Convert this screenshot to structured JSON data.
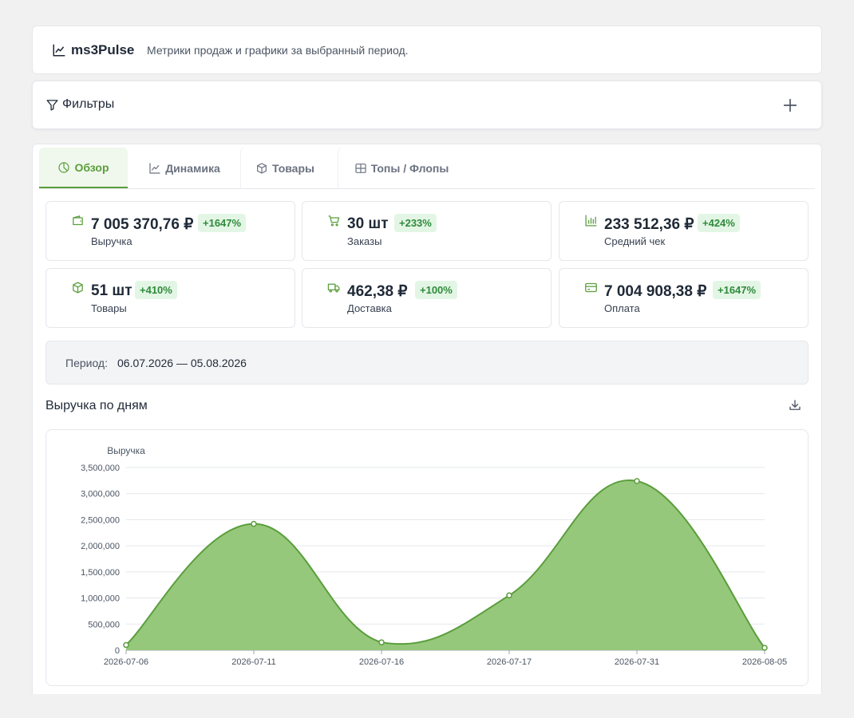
{
  "header": {
    "app_name": "ms3Pulse",
    "subtitle": "Метрики продаж и графики за выбранный период."
  },
  "filters": {
    "title": "Фильтры"
  },
  "tabs": [
    {
      "label": "Обзор",
      "icon": "pie-chart-icon",
      "active": true
    },
    {
      "label": "Динамика",
      "icon": "line-chart-icon",
      "active": false
    },
    {
      "label": "Товары",
      "icon": "box-icon",
      "active": false
    },
    {
      "label": "Топы / Флопы",
      "icon": "grid-icon",
      "active": false
    }
  ],
  "metrics": [
    {
      "value": "7 005 370,76 ₽",
      "badge": "+1647%",
      "label": "Выручка",
      "icon": "wallet-icon"
    },
    {
      "value": "30 шт",
      "badge": "+233%",
      "label": "Заказы",
      "icon": "cart-icon"
    },
    {
      "value": "233 512,36 ₽",
      "badge": "+424%",
      "label": "Средний чек",
      "icon": "bar-chart-icon"
    },
    {
      "value": "51 шт",
      "badge": "+410%",
      "label": "Товары",
      "icon": "box-icon"
    },
    {
      "value": "462,38 ₽",
      "badge": "+100%",
      "label": "Доставка",
      "icon": "truck-icon"
    },
    {
      "value": "7 004 908,38 ₽",
      "badge": "+1647%",
      "label": "Оплата",
      "icon": "credit-card-icon"
    }
  ],
  "period": {
    "label": "Период:",
    "value": "06.07.2026 — 05.08.2026"
  },
  "chart_section": {
    "title": "Выручка по дням"
  },
  "colors": {
    "accent": "#5a9e3c",
    "area_fill": "#96c87b",
    "badge_bg": "#e3f6e5",
    "badge_text": "#2f8a3a"
  },
  "chart_data": {
    "type": "area",
    "title": "",
    "xlabel": "",
    "ylabel": "Выручка",
    "categories": [
      "2026-07-06",
      "2026-07-11",
      "2026-07-16",
      "2026-07-17",
      "2026-07-31",
      "2026-08-05"
    ],
    "values": [
      100000,
      2420000,
      150000,
      1050000,
      3240000,
      45000
    ],
    "ylim": [
      0,
      3500000
    ],
    "yticks": [
      0,
      500000,
      1000000,
      1500000,
      2000000,
      2500000,
      3000000,
      3500000
    ],
    "ytick_labels": [
      "0",
      "500,000",
      "1,000,000",
      "1,500,000",
      "2,000,000",
      "2,500,000",
      "3,000,000",
      "3,500,000"
    ],
    "grid": true,
    "legend": "none"
  }
}
